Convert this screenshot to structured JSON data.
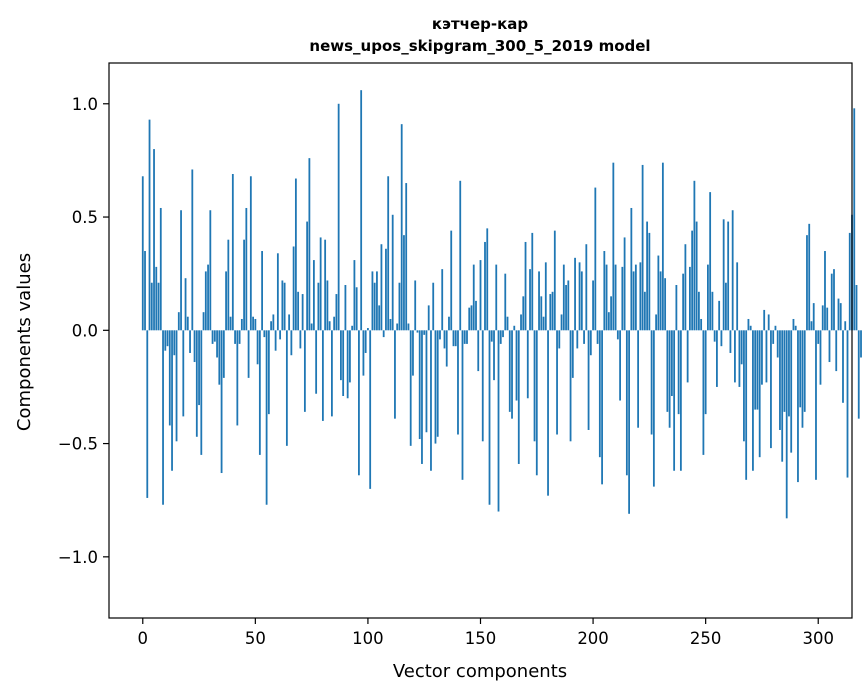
{
  "chart_data": {
    "type": "bar",
    "title_line1": "кэтчер-кар",
    "title_line2": "news_upos_skipgram_300_5_2019 model",
    "xlabel": "Vector components",
    "ylabel": "Components values",
    "xlim": [
      -15,
      315
    ],
    "ylim": [
      -1.27,
      1.18
    ],
    "xticks": [
      0,
      50,
      100,
      150,
      200,
      250,
      300
    ],
    "yticks": [
      -1.0,
      -0.5,
      0.0,
      0.5,
      1.0
    ],
    "ytick_labels": [
      "−1.0",
      "−0.5",
      "0.0",
      "0.5",
      "1.0"
    ],
    "bar_color": "#1f77b4",
    "bar_width": 0.8,
    "values": [
      0.68,
      0.35,
      -0.74,
      0.93,
      0.21,
      0.8,
      0.28,
      0.21,
      0.54,
      -0.77,
      -0.09,
      -0.07,
      -0.42,
      -0.62,
      -0.11,
      -0.49,
      0.08,
      0.53,
      -0.38,
      0.23,
      0.06,
      -0.1,
      0.71,
      -0.14,
      -0.47,
      -0.33,
      -0.55,
      0.08,
      0.26,
      0.29,
      0.53,
      -0.06,
      -0.05,
      -0.12,
      -0.24,
      -0.63,
      -0.21,
      0.26,
      0.4,
      0.06,
      0.69,
      -0.06,
      -0.42,
      -0.06,
      0.05,
      0.4,
      0.54,
      -0.21,
      0.68,
      0.06,
      0.05,
      -0.15,
      -0.55,
      0.35,
      -0.03,
      -0.77,
      -0.37,
      0.04,
      0.07,
      -0.09,
      0.34,
      -0.04,
      0.22,
      0.21,
      -0.51,
      0.07,
      -0.11,
      0.37,
      0.67,
      0.17,
      -0.08,
      0.16,
      -0.36,
      0.48,
      0.76,
      0.03,
      0.31,
      -0.28,
      0.21,
      0.41,
      -0.4,
      0.4,
      0.22,
      0.04,
      -0.38,
      0.06,
      0.16,
      1.0,
      -0.22,
      -0.29,
      0.2,
      -0.3,
      -0.23,
      0.02,
      0.31,
      0.19,
      -0.64,
      1.06,
      -0.2,
      -0.1,
      0.01,
      -0.7,
      0.26,
      0.21,
      0.26,
      0.11,
      0.38,
      -0.03,
      0.36,
      0.68,
      0.05,
      0.51,
      -0.39,
      0.03,
      0.21,
      0.91,
      0.42,
      0.65,
      0.03,
      -0.51,
      -0.2,
      0.22,
      -0.01,
      -0.48,
      -0.59,
      -0.02,
      -0.45,
      0.11,
      -0.62,
      0.21,
      -0.5,
      -0.47,
      -0.04,
      0.27,
      -0.08,
      -0.16,
      0.06,
      0.44,
      -0.07,
      -0.07,
      -0.46,
      0.66,
      -0.66,
      -0.06,
      -0.06,
      0.1,
      0.11,
      0.29,
      0.13,
      -0.18,
      0.31,
      -0.49,
      0.39,
      0.45,
      -0.77,
      -0.05,
      -0.22,
      0.29,
      -0.8,
      -0.06,
      -0.03,
      0.25,
      0.06,
      -0.36,
      -0.39,
      0.02,
      -0.31,
      -0.59,
      0.07,
      0.15,
      0.39,
      -0.3,
      0.27,
      0.43,
      -0.49,
      -0.64,
      0.26,
      0.15,
      0.06,
      0.3,
      -0.73,
      0.16,
      0.17,
      0.44,
      -0.46,
      -0.08,
      0.07,
      0.29,
      0.2,
      0.22,
      -0.49,
      -0.21,
      0.32,
      -0.08,
      0.3,
      0.26,
      -0.06,
      0.38,
      -0.44,
      -0.11,
      0.22,
      0.63,
      -0.06,
      -0.56,
      -0.68,
      0.35,
      0.29,
      0.08,
      0.15,
      0.74,
      0.29,
      -0.04,
      -0.31,
      0.28,
      0.41,
      -0.64,
      -0.81,
      0.54,
      0.26,
      0.29,
      -0.43,
      0.3,
      0.73,
      0.17,
      0.48,
      0.43,
      -0.46,
      -0.69,
      0.07,
      0.33,
      0.26,
      0.74,
      0.23,
      -0.36,
      -0.43,
      -0.29,
      -0.62,
      0.2,
      -0.37,
      -0.62,
      0.25,
      0.38,
      -0.23,
      0.28,
      0.44,
      0.66,
      0.48,
      0.17,
      0.05,
      -0.55,
      -0.37,
      0.29,
      0.61,
      0.17,
      -0.05,
      -0.25,
      0.13,
      -0.07,
      0.49,
      0.21,
      0.48,
      -0.1,
      0.53,
      -0.23,
      0.3,
      -0.25,
      -0.15,
      -0.49,
      -0.66,
      0.05,
      0.02,
      -0.62,
      -0.35,
      -0.35,
      -0.56,
      -0.24,
      0.09,
      -0.23,
      0.07,
      -0.52,
      -0.06,
      0.02,
      -0.12,
      -0.44,
      -0.58,
      -0.36,
      -0.83,
      -0.38,
      -0.54,
      0.05,
      0.02,
      -0.67,
      -0.34,
      -0.43,
      -0.36,
      0.42,
      0.47,
      0.04,
      0.12,
      -0.66,
      -0.06,
      -0.24,
      0.11,
      0.35,
      0.1,
      -0.14,
      0.25,
      0.27,
      -0.18,
      0.14,
      0.12,
      -0.32,
      0.04,
      -0.65,
      0.43,
      0.51,
      0.98,
      0.2,
      -0.39,
      -0.12
    ]
  }
}
